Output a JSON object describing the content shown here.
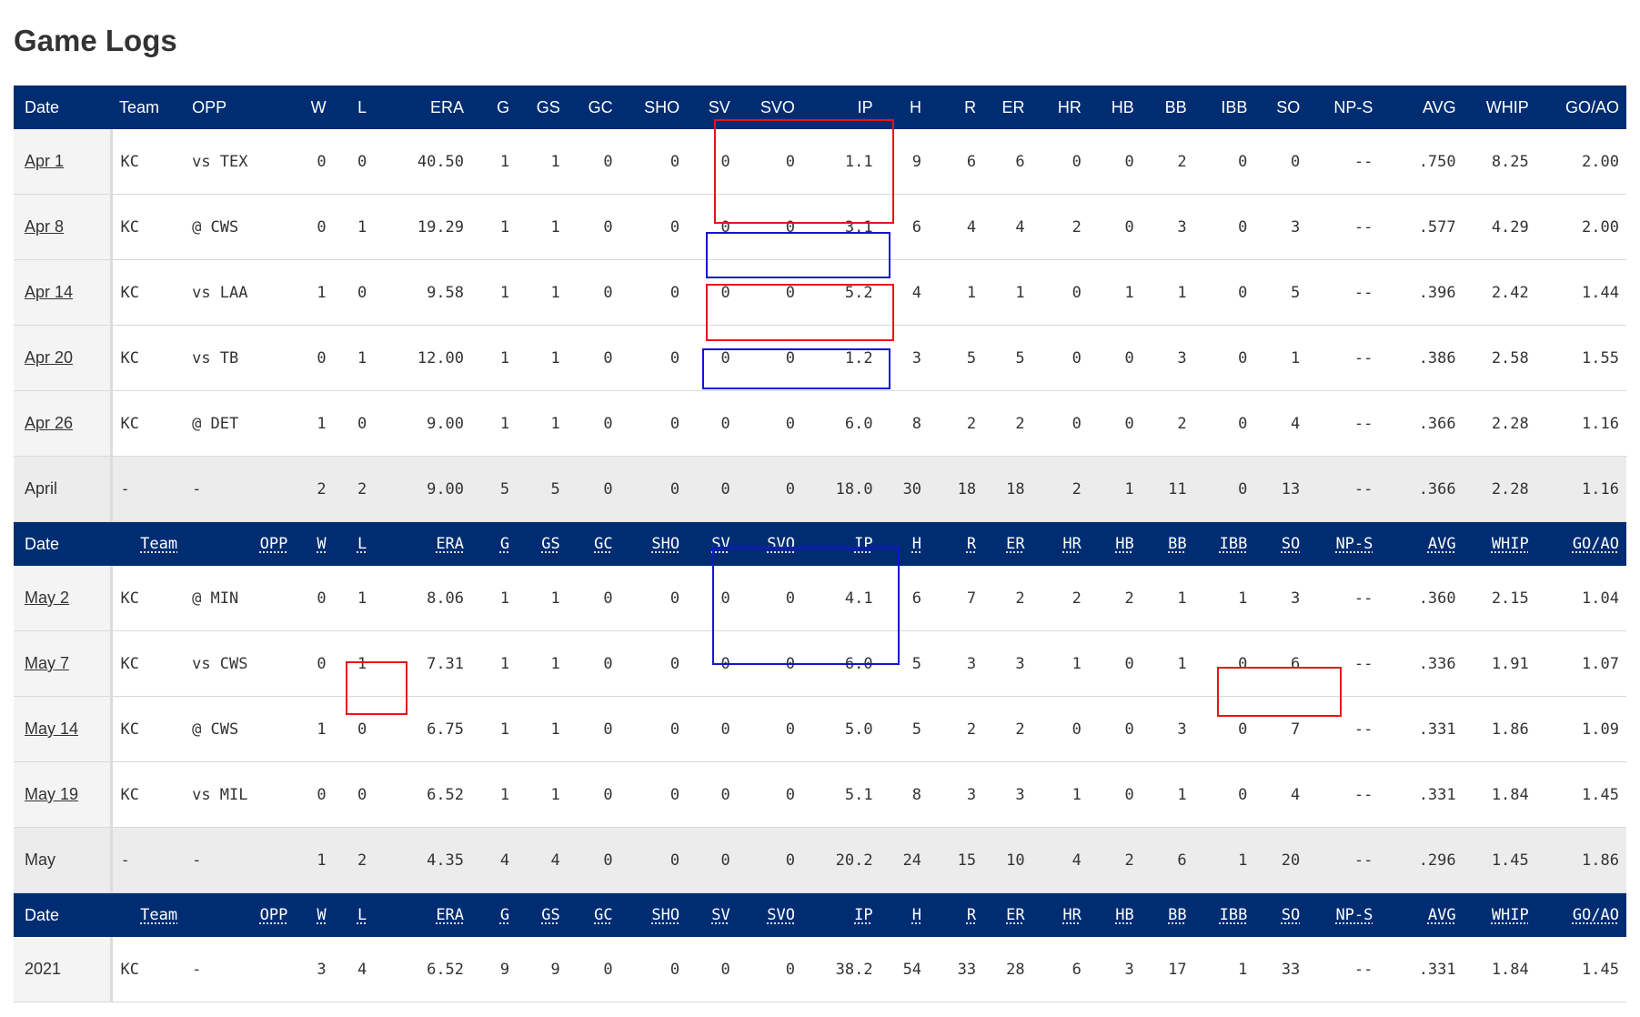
{
  "title": "Game Logs",
  "columns": [
    "Date",
    "Team",
    "OPP",
    "W",
    "L",
    "ERA",
    "G",
    "GS",
    "GC",
    "SHO",
    "SV",
    "SVO",
    "IP",
    "H",
    "R",
    "ER",
    "HR",
    "HB",
    "BB",
    "IBB",
    "SO",
    "NP-S",
    "AVG",
    "WHIP",
    "GO/AO"
  ],
  "april_rows": [
    [
      "Apr 1",
      "KC",
      "vs TEX",
      "0",
      "0",
      "40.50",
      "1",
      "1",
      "0",
      "0",
      "0",
      "0",
      "1.1",
      "9",
      "6",
      "6",
      "0",
      "0",
      "2",
      "0",
      "0",
      "--",
      ".750",
      "8.25",
      "2.00"
    ],
    [
      "Apr 8",
      "KC",
      "@ CWS",
      "0",
      "1",
      "19.29",
      "1",
      "1",
      "0",
      "0",
      "0",
      "0",
      "3.1",
      "6",
      "4",
      "4",
      "2",
      "0",
      "3",
      "0",
      "3",
      "--",
      ".577",
      "4.29",
      "2.00"
    ],
    [
      "Apr 14",
      "KC",
      "vs LAA",
      "1",
      "0",
      "9.58",
      "1",
      "1",
      "0",
      "0",
      "0",
      "0",
      "5.2",
      "4",
      "1",
      "1",
      "0",
      "1",
      "1",
      "0",
      "5",
      "--",
      ".396",
      "2.42",
      "1.44"
    ],
    [
      "Apr 20",
      "KC",
      "vs TB",
      "0",
      "1",
      "12.00",
      "1",
      "1",
      "0",
      "0",
      "0",
      "0",
      "1.2",
      "3",
      "5",
      "5",
      "0",
      "0",
      "3",
      "0",
      "1",
      "--",
      ".386",
      "2.58",
      "1.55"
    ],
    [
      "Apr 26",
      "KC",
      "@ DET",
      "1",
      "0",
      "9.00",
      "1",
      "1",
      "0",
      "0",
      "0",
      "0",
      "6.0",
      "8",
      "2",
      "2",
      "0",
      "0",
      "2",
      "0",
      "4",
      "--",
      ".366",
      "2.28",
      "1.16"
    ]
  ],
  "april_total": [
    "April",
    "-",
    "-",
    "2",
    "2",
    "9.00",
    "5",
    "5",
    "0",
    "0",
    "0",
    "0",
    "18.0",
    "30",
    "18",
    "18",
    "2",
    "1",
    "11",
    "0",
    "13",
    "--",
    ".366",
    "2.28",
    "1.16"
  ],
  "may_rows": [
    [
      "May 2",
      "KC",
      "@ MIN",
      "0",
      "1",
      "8.06",
      "1",
      "1",
      "0",
      "0",
      "0",
      "0",
      "4.1",
      "6",
      "7",
      "2",
      "2",
      "2",
      "1",
      "1",
      "3",
      "--",
      ".360",
      "2.15",
      "1.04"
    ],
    [
      "May 7",
      "KC",
      "vs CWS",
      "0",
      "1",
      "7.31",
      "1",
      "1",
      "0",
      "0",
      "0",
      "0",
      "6.0",
      "5",
      "3",
      "3",
      "1",
      "0",
      "1",
      "0",
      "6",
      "--",
      ".336",
      "1.91",
      "1.07"
    ],
    [
      "May 14",
      "KC",
      "@ CWS",
      "1",
      "0",
      "6.75",
      "1",
      "1",
      "0",
      "0",
      "0",
      "0",
      "5.0",
      "5",
      "2",
      "2",
      "0",
      "0",
      "3",
      "0",
      "7",
      "--",
      ".331",
      "1.86",
      "1.09"
    ],
    [
      "May 19",
      "KC",
      "vs MIL",
      "0",
      "0",
      "6.52",
      "1",
      "1",
      "0",
      "0",
      "0",
      "0",
      "5.1",
      "8",
      "3",
      "3",
      "1",
      "0",
      "1",
      "0",
      "4",
      "--",
      ".331",
      "1.84",
      "1.45"
    ]
  ],
  "may_total": [
    "May",
    "-",
    "-",
    "1",
    "2",
    "4.35",
    "4",
    "4",
    "0",
    "0",
    "0",
    "0",
    "20.2",
    "24",
    "15",
    "10",
    "4",
    "2",
    "6",
    "1",
    "20",
    "--",
    ".296",
    "1.45",
    "1.86"
  ],
  "season_total": [
    "2021",
    "KC",
    "-",
    "3",
    "4",
    "6.52",
    "9",
    "9",
    "0",
    "0",
    "0",
    "0",
    "38.2",
    "54",
    "33",
    "28",
    "6",
    "3",
    "17",
    "1",
    "33",
    "--",
    ".331",
    "1.84",
    "1.45"
  ],
  "highlight_colors": {
    "red": "#e8141b",
    "blue": "#1414d4"
  }
}
